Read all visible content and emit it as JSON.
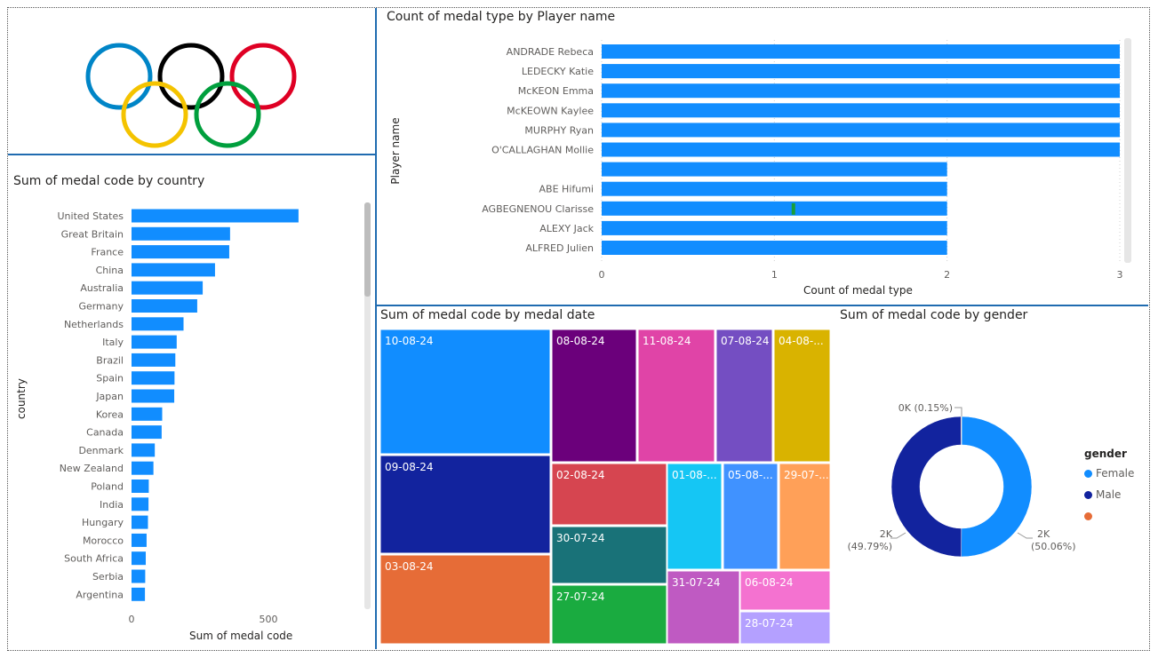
{
  "colors": {
    "bar": "#118dff",
    "accent_green": "#1a9e3a",
    "divider": "#1f6bb0"
  },
  "logo": {
    "name": "olympic-rings",
    "ring_colors": [
      "#0085c7",
      "#000000",
      "#df0024",
      "#f4c300",
      "#009f3d"
    ]
  },
  "charts": {
    "country": {
      "title": "Sum of medal code by country",
      "xlabel": "Sum of medal code",
      "ylabel": "country"
    },
    "player": {
      "title": "Count of medal type by Player name",
      "xlabel": "Count of medal type",
      "ylabel": "Player name"
    },
    "date": {
      "title": "Sum of medal code by medal date"
    },
    "gender": {
      "title": "Sum of medal code by gender",
      "legend_title": "gender",
      "legend": [
        {
          "label": "Female",
          "color": "#118dff"
        },
        {
          "label": "Male",
          "color": "#12239e"
        },
        {
          "label": "",
          "color": "#e66c37"
        }
      ],
      "labels": {
        "top": "0K (0.15%)",
        "left_value": "2K",
        "left_pct": "(49.79%)",
        "right_value": "2K",
        "right_pct": "(50.06%)"
      }
    }
  },
  "chart_data": [
    {
      "type": "bar",
      "orientation": "horizontal",
      "title": "Sum of medal code by country",
      "xlabel": "Sum of medal code",
      "ylabel": "country",
      "categories": [
        "United States",
        "Great Britain",
        "France",
        "China",
        "Australia",
        "Germany",
        "Netherlands",
        "Italy",
        "Brazil",
        "Spain",
        "Japan",
        "Korea",
        "Canada",
        "Denmark",
        "New Zealand",
        "Poland",
        "India",
        "Hungary",
        "Morocco",
        "South Africa",
        "Serbia",
        "Argentina"
      ],
      "values": [
        610,
        360,
        357,
        305,
        260,
        240,
        190,
        165,
        160,
        157,
        156,
        112,
        110,
        85,
        80,
        63,
        62,
        60,
        55,
        52,
        50,
        49
      ],
      "xlim": [
        0,
        700
      ],
      "xticks": [
        0,
        500
      ]
    },
    {
      "type": "bar",
      "orientation": "horizontal",
      "title": "Count of medal type by Player name",
      "xlabel": "Count of medal type",
      "ylabel": "Player name",
      "categories": [
        "ANDRADE Rebeca",
        "LEDECKY Katie",
        "McKEON Emma",
        "McKEOWN Kaylee",
        "MURPHY Ryan",
        "O'CALLAGHAN Mollie",
        "",
        "ABE Hifumi",
        "AGBEGNENOU Clarisse",
        "ALEXY Jack",
        "ALFRED Julien"
      ],
      "values": [
        3,
        3,
        3,
        3,
        3,
        3,
        2,
        2,
        2,
        2,
        2
      ],
      "xlim": [
        0,
        3
      ],
      "xticks": [
        0,
        1,
        2,
        3
      ]
    },
    {
      "type": "treemap",
      "title": "Sum of medal code by medal date",
      "items": [
        {
          "label": "10-08-24",
          "color": "#118dff"
        },
        {
          "label": "09-08-24",
          "color": "#12239e"
        },
        {
          "label": "03-08-24",
          "color": "#e66c37"
        },
        {
          "label": "08-08-24",
          "color": "#6b007b"
        },
        {
          "label": "11-08-24",
          "color": "#e044a7"
        },
        {
          "label": "07-08-24",
          "color": "#744ec2"
        },
        {
          "label": "04-08-...",
          "color": "#d9b300"
        },
        {
          "label": "02-08-24",
          "color": "#d64550"
        },
        {
          "label": "01-08-...",
          "color": "#15c6f4"
        },
        {
          "label": "05-08-...",
          "color": "#4092ff"
        },
        {
          "label": "29-07-...",
          "color": "#ffa058"
        },
        {
          "label": "30-07-24",
          "color": "#197278"
        },
        {
          "label": "27-07-24",
          "color": "#1aab40"
        },
        {
          "label": "31-07-24",
          "color": "#bf5ac2"
        },
        {
          "label": "06-08-24",
          "color": "#f472d0"
        },
        {
          "label": "28-07-24",
          "color": "#b4a0ff"
        }
      ]
    },
    {
      "type": "pie",
      "variant": "donut",
      "title": "Sum of medal code by gender",
      "categories": [
        "Female",
        "Male",
        ""
      ],
      "values": [
        50.06,
        49.79,
        0.15
      ]
    }
  ]
}
